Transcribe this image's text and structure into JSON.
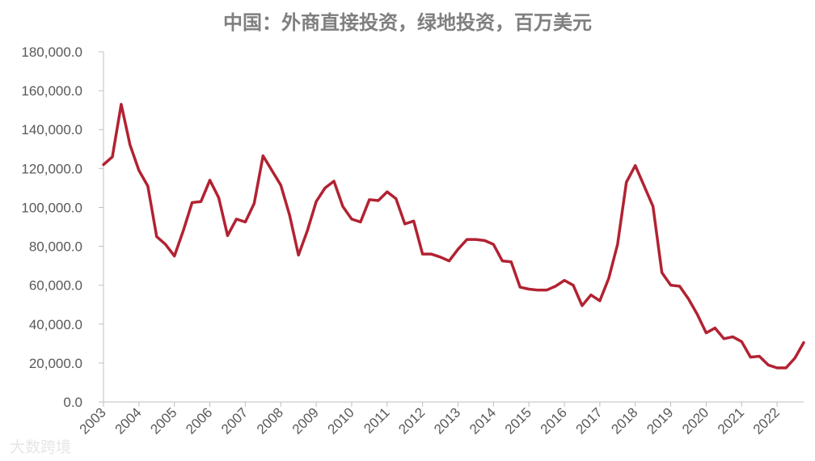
{
  "chart_data": {
    "type": "line",
    "title": "中国：外商直接投资，绿地投资，百万美元",
    "xlabel": "",
    "ylabel": "",
    "ylim": [
      0,
      180000
    ],
    "yticks": [
      "0.0",
      "20,000.0",
      "40,000.0",
      "60,000.0",
      "80,000.0",
      "100,000.0",
      "120,000.0",
      "140,000.0",
      "160,000.0",
      "180,000.0"
    ],
    "xticks": [
      "2003",
      "2004",
      "2005",
      "2006",
      "2007",
      "2008",
      "2009",
      "2010",
      "2011",
      "2012",
      "2013",
      "2014",
      "2015",
      "2016",
      "2017",
      "2018",
      "2019",
      "2020",
      "2021",
      "2022"
    ],
    "grid": false,
    "legend": "none",
    "line_color": "#b22232",
    "series": [
      {
        "x": [
          "2003Q1",
          "2003Q2",
          "2003Q3",
          "2003Q4",
          "2004Q1",
          "2004Q2",
          "2004Q3",
          "2004Q4",
          "2005Q1",
          "2005Q2",
          "2005Q3",
          "2005Q4",
          "2006Q1",
          "2006Q2",
          "2006Q3",
          "2006Q4",
          "2007Q1",
          "2007Q2",
          "2007Q3",
          "2007Q4",
          "2008Q1",
          "2008Q2",
          "2008Q3",
          "2008Q4",
          "2009Q1",
          "2009Q2",
          "2009Q3",
          "2009Q4",
          "2010Q1",
          "2010Q2",
          "2010Q3",
          "2010Q4",
          "2011Q1",
          "2011Q2",
          "2011Q3",
          "2011Q4",
          "2012Q1",
          "2012Q2",
          "2012Q3",
          "2012Q4",
          "2013Q1",
          "2013Q2",
          "2013Q3",
          "2013Q4",
          "2014Q1",
          "2014Q2",
          "2014Q3",
          "2014Q4",
          "2015Q1",
          "2015Q2",
          "2015Q3",
          "2015Q4",
          "2016Q1",
          "2016Q2",
          "2016Q3",
          "2016Q4",
          "2017Q1",
          "2017Q2",
          "2017Q3",
          "2017Q4",
          "2018Q1",
          "2018Q2",
          "2018Q3",
          "2018Q4",
          "2019Q1",
          "2019Q2",
          "2019Q3",
          "2019Q4",
          "2020Q1",
          "2020Q2",
          "2020Q3",
          "2020Q4",
          "2021Q1",
          "2021Q2",
          "2021Q3",
          "2021Q4",
          "2022Q1",
          "2022Q2",
          "2022Q3",
          "2022Q4"
        ],
        "values": [
          122000,
          126000,
          153000,
          132000,
          119000,
          111000,
          85000,
          81000,
          75000,
          88000,
          102500,
          103000,
          114000,
          105000,
          85500,
          94000,
          92500,
          102000,
          126500,
          119000,
          111500,
          96000,
          75500,
          88000,
          103000,
          110000,
          113500,
          100500,
          94000,
          92500,
          104000,
          103500,
          108000,
          104500,
          91500,
          93000,
          76000,
          76000,
          74500,
          72500,
          78500,
          83500,
          83500,
          83000,
          81000,
          72500,
          72000,
          59000,
          58000,
          57500,
          57500,
          59500,
          62500,
          60000,
          49500,
          55000,
          52000,
          63500,
          81000,
          113000,
          121500,
          111000,
          100500,
          66500,
          60000,
          59500,
          53000,
          45000,
          35500,
          38000,
          32500,
          33500,
          31000,
          23000,
          23500,
          19000,
          17500,
          17500,
          22500,
          30500
        ]
      }
    ]
  },
  "watermark": "大数跨境"
}
